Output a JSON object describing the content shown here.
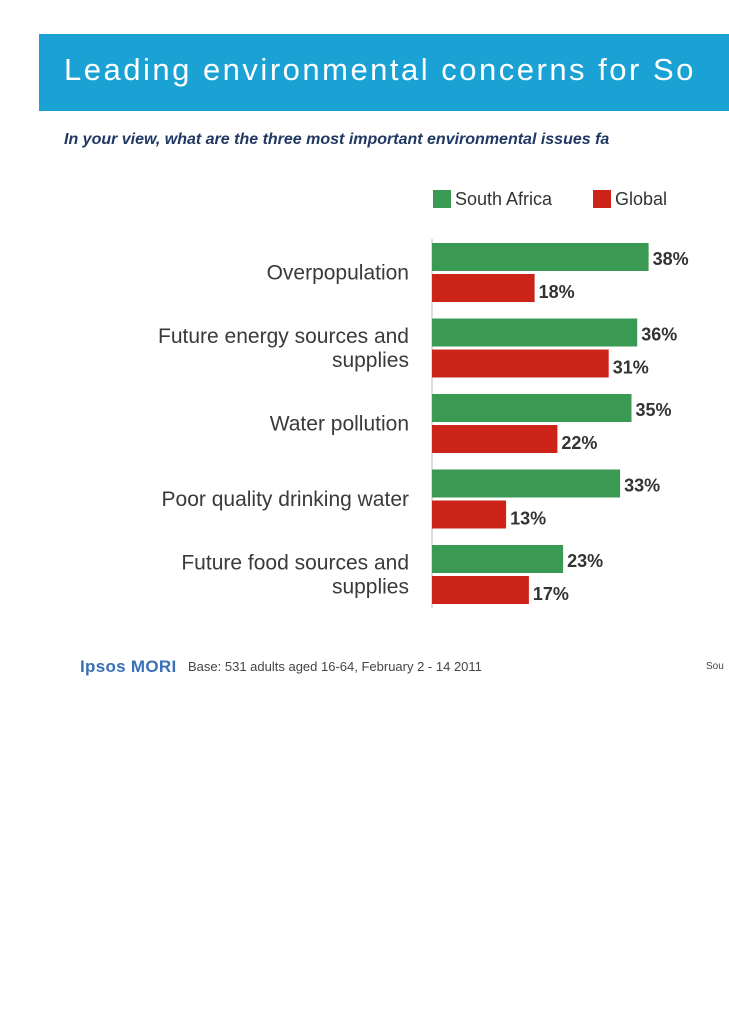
{
  "title": "Leading environmental concerns for So",
  "question": "In your view, what are the three most important environmental issues fa",
  "footer": {
    "logo": "Ipsos MORI",
    "base": "Base: 531 adults aged 16-64, February 2 - 14 2011",
    "source": "Sou"
  },
  "chart_data": {
    "type": "bar",
    "orientation": "horizontal",
    "legend_placement": "top",
    "grid": false,
    "categories": [
      [
        "Overpopulation"
      ],
      [
        "Future energy sources and",
        "supplies"
      ],
      [
        "Water pollution"
      ],
      [
        "Poor quality drinking water"
      ],
      [
        "Future food sources and",
        "supplies"
      ]
    ],
    "series": [
      {
        "name": "South Africa",
        "color": "#3a9a54",
        "values": [
          38,
          36,
          35,
          33,
          23
        ],
        "labels": [
          "38%",
          "36%",
          "35%",
          "33%",
          "23%"
        ]
      },
      {
        "name": "Global",
        "color": "#cc2418",
        "values": [
          18,
          31,
          22,
          13,
          17
        ],
        "labels": [
          "18%",
          "31%",
          "22%",
          "13%",
          "17%"
        ]
      }
    ],
    "xlim": [
      0,
      40
    ]
  }
}
